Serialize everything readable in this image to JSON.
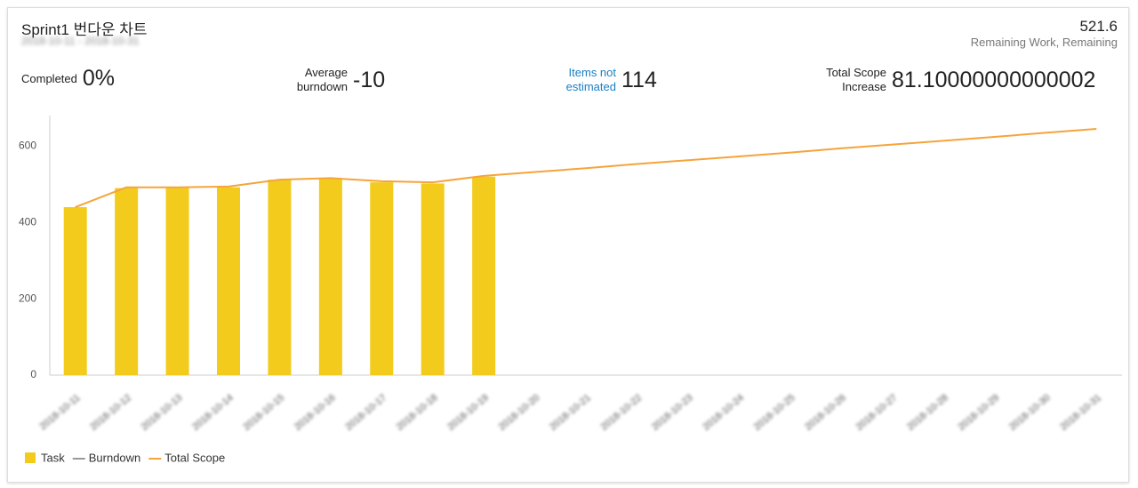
{
  "header": {
    "title": "Sprint1 번다운 차트",
    "subtitle": "2018-10-11 - 2018-10-31",
    "remaining_value": "521.6",
    "remaining_label": "Remaining Work, Remaining"
  },
  "stats": [
    {
      "label": "Completed",
      "value": "0%"
    },
    {
      "label": "Average burndown",
      "value": "-10"
    },
    {
      "label": "Items not estimated",
      "value": "114"
    },
    {
      "label": "Total Scope Increase",
      "value": "81.10000000000002"
    }
  ],
  "chart_data": {
    "type": "bar-line",
    "categories": [
      "2018-10-11",
      "2018-10-12",
      "2018-10-13",
      "2018-10-14",
      "2018-10-15",
      "2018-10-16",
      "2018-10-17",
      "2018-10-18",
      "2018-10-19",
      "2018-10-20",
      "2018-10-21",
      "2018-10-22",
      "2018-10-23",
      "2018-10-24",
      "2018-10-25",
      "2018-10-26",
      "2018-10-27",
      "2018-10-28",
      "2018-10-29",
      "2018-10-30",
      "2018-10-31"
    ],
    "series": [
      {
        "name": "Task",
        "type": "bar",
        "color": "#f2cb1d",
        "values": [
          440,
          490,
          490,
          492,
          512,
          515,
          505,
          502,
          520,
          null,
          null,
          null,
          null,
          null,
          null,
          null,
          null,
          null,
          null,
          null,
          null
        ]
      },
      {
        "name": "Burndown",
        "type": "line",
        "color": "#999999",
        "values": [
          null,
          null,
          null,
          null,
          null,
          null,
          null,
          null,
          null,
          null,
          null,
          null,
          null,
          null,
          null,
          null,
          null,
          null,
          null,
          null,
          null
        ]
      },
      {
        "name": "Total Scope",
        "type": "line",
        "color": "#f5a43a",
        "values": [
          440,
          492,
          492,
          494,
          512,
          516,
          508,
          505,
          522,
          532,
          542,
          553,
          563,
          573,
          583,
          594,
          604,
          614,
          624,
          635,
          645
        ]
      }
    ],
    "ylim": [
      0,
      680
    ],
    "yticks": [
      0,
      200,
      400,
      600
    ],
    "grid": true
  }
}
